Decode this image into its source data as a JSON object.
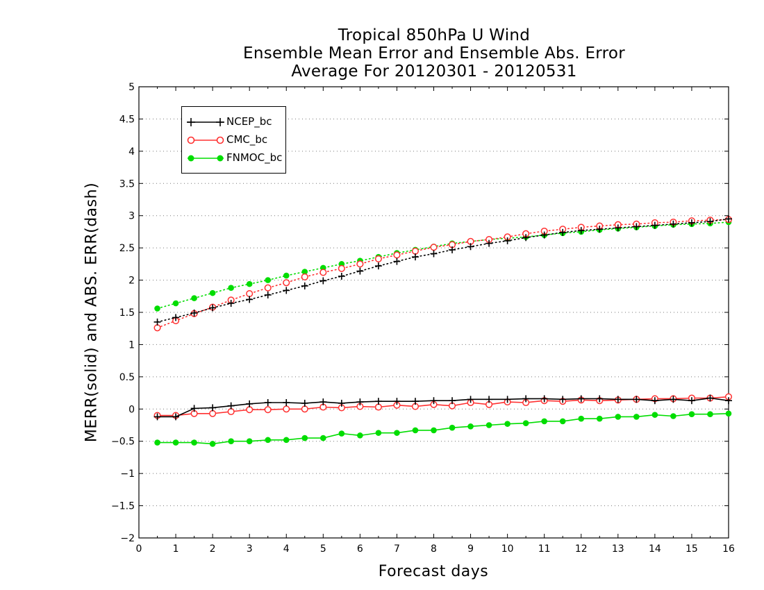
{
  "chart_data": {
    "type": "line",
    "title": [
      "Tropical 850hPa U Wind",
      "Ensemble Mean Error and Ensemble Abs. Error",
      "Average For 20120301 - 20120531"
    ],
    "xlabel": "Forecast days",
    "ylabel": "MERR(solid) and ABS. ERR(dash)",
    "xlim": [
      0,
      16
    ],
    "ylim": [
      -2,
      5
    ],
    "xticks": [
      "0",
      "1",
      "2",
      "3",
      "4",
      "5",
      "6",
      "7",
      "8",
      "9",
      "10",
      "11",
      "12",
      "13",
      "14",
      "15",
      "16"
    ],
    "yticks": [
      "−2",
      "−1.5",
      "−1",
      "−0.5",
      "0",
      "0.5",
      "1",
      "1.5",
      "2",
      "2.5",
      "3",
      "3.5",
      "4",
      "4.5",
      "5"
    ],
    "grid": "horizontal dotted",
    "legend_position": "top-left",
    "x": [
      0.5,
      1,
      1.5,
      2,
      2.5,
      3,
      3.5,
      4,
      4.5,
      5,
      5.5,
      6,
      6.5,
      7,
      7.5,
      8,
      8.5,
      9,
      9.5,
      10,
      10.5,
      11,
      11.5,
      12,
      12.5,
      13,
      13.5,
      14,
      14.5,
      15,
      15.5,
      16
    ],
    "series": [
      {
        "name": "NCEP_bc",
        "color": "#000000",
        "marker": "plus",
        "merr": [
          -0.12,
          -0.12,
          0.01,
          0.02,
          0.05,
          0.08,
          0.1,
          0.1,
          0.09,
          0.11,
          0.09,
          0.11,
          0.12,
          0.12,
          0.12,
          0.13,
          0.13,
          0.15,
          0.15,
          0.15,
          0.16,
          0.16,
          0.15,
          0.16,
          0.16,
          0.15,
          0.15,
          0.13,
          0.15,
          0.13,
          0.17,
          0.13
        ],
        "abs_err": [
          1.35,
          1.42,
          1.49,
          1.57,
          1.64,
          1.7,
          1.77,
          1.84,
          1.91,
          1.99,
          2.06,
          2.14,
          2.22,
          2.29,
          2.36,
          2.41,
          2.47,
          2.52,
          2.57,
          2.61,
          2.66,
          2.7,
          2.74,
          2.77,
          2.79,
          2.81,
          2.83,
          2.85,
          2.87,
          2.89,
          2.91,
          2.95
        ]
      },
      {
        "name": "CMC_bc",
        "color": "#ff3030",
        "marker": "open-circle",
        "merr": [
          -0.1,
          -0.1,
          -0.07,
          -0.07,
          -0.04,
          -0.01,
          -0.01,
          0.0,
          0.0,
          0.03,
          0.02,
          0.04,
          0.03,
          0.06,
          0.04,
          0.07,
          0.05,
          0.1,
          0.07,
          0.11,
          0.1,
          0.13,
          0.12,
          0.14,
          0.13,
          0.14,
          0.15,
          0.16,
          0.16,
          0.17,
          0.17,
          0.19
        ],
        "abs_err": [
          1.26,
          1.37,
          1.48,
          1.58,
          1.69,
          1.79,
          1.88,
          1.96,
          2.05,
          2.12,
          2.18,
          2.25,
          2.33,
          2.39,
          2.45,
          2.51,
          2.55,
          2.6,
          2.63,
          2.67,
          2.72,
          2.76,
          2.79,
          2.82,
          2.84,
          2.86,
          2.87,
          2.89,
          2.9,
          2.92,
          2.93,
          2.94
        ]
      },
      {
        "name": "FNMOC_bc",
        "color": "#00dd00",
        "marker": "filled-circle",
        "merr": [
          -0.52,
          -0.52,
          -0.52,
          -0.54,
          -0.5,
          -0.5,
          -0.48,
          -0.48,
          -0.45,
          -0.45,
          -0.38,
          -0.41,
          -0.37,
          -0.37,
          -0.33,
          -0.33,
          -0.29,
          -0.27,
          -0.25,
          -0.23,
          -0.22,
          -0.19,
          -0.19,
          -0.15,
          -0.15,
          -0.12,
          -0.12,
          -0.09,
          -0.11,
          -0.08,
          -0.08,
          -0.07
        ],
        "abs_err": [
          1.56,
          1.64,
          1.72,
          1.8,
          1.88,
          1.94,
          2.0,
          2.07,
          2.13,
          2.19,
          2.25,
          2.3,
          2.36,
          2.42,
          2.47,
          2.52,
          2.57,
          2.6,
          2.63,
          2.65,
          2.67,
          2.7,
          2.73,
          2.75,
          2.78,
          2.8,
          2.82,
          2.84,
          2.86,
          2.87,
          2.88,
          2.9
        ]
      }
    ]
  }
}
